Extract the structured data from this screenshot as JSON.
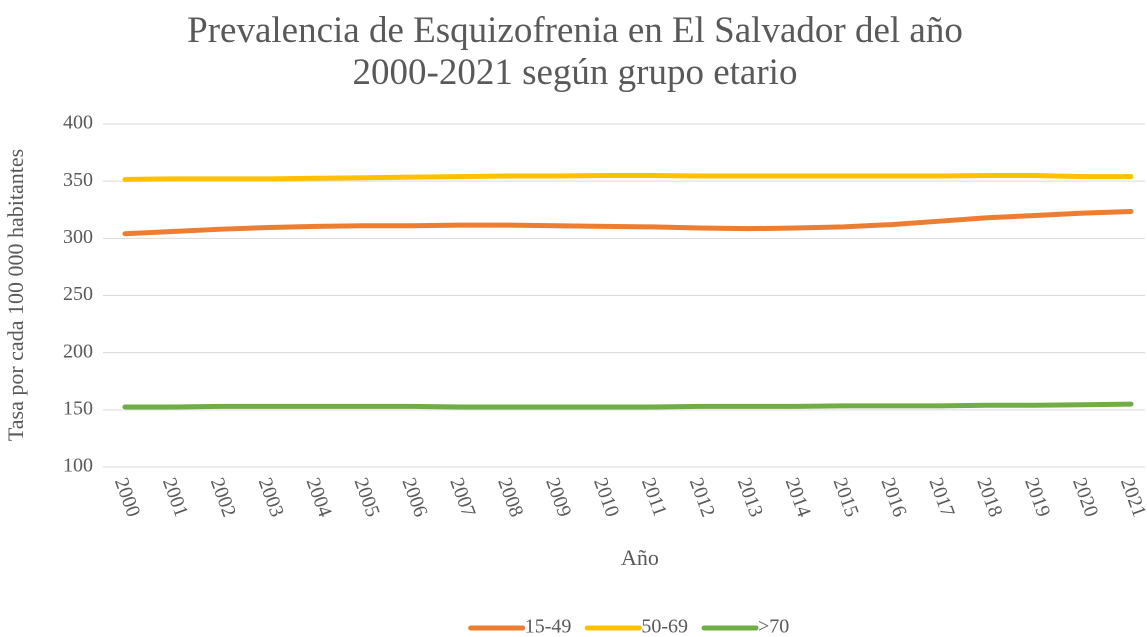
{
  "chart_data": {
    "type": "line",
    "title": "Prevalencia de Esquizofrenia en El Salvador del año 2000-2021 según grupo etario",
    "x_label": "Año",
    "y_label": "Tasa por cada 100 000 habitantes",
    "categories": [
      "2000",
      "2001",
      "2002",
      "2003",
      "2004",
      "2005",
      "2006",
      "2007",
      "2008",
      "2009",
      "2010",
      "2011",
      "2012",
      "2013",
      "2014",
      "2015",
      "2016",
      "2017",
      "2018",
      "2019",
      "2020",
      "2021"
    ],
    "series": [
      {
        "name": "15-49",
        "color": "#ED7D31",
        "values": [
          304,
          306,
          308,
          309.5,
          310.5,
          311,
          311,
          311.5,
          311.5,
          311,
          310.5,
          310,
          309,
          308.5,
          309,
          310,
          312,
          315,
          318,
          320,
          322,
          323.5
        ]
      },
      {
        "name": "50-69",
        "color": "#FFC000",
        "values": [
          351.5,
          352,
          352,
          352,
          352.5,
          353,
          353.5,
          354,
          354.5,
          354.5,
          355,
          355,
          354.5,
          354.5,
          354.5,
          354.5,
          354.5,
          354.5,
          355,
          355,
          354,
          354
        ]
      },
      {
        "name": ">70",
        "color": "#70AD47",
        "values": [
          152.5,
          152.5,
          153,
          153,
          153,
          153,
          153,
          152.5,
          152.5,
          152.5,
          152.5,
          152.5,
          153,
          153,
          153,
          153.5,
          153.5,
          153.5,
          154,
          154,
          154.5,
          155
        ]
      }
    ],
    "ylim": [
      100,
      400
    ],
    "yticks": [
      100,
      150,
      200,
      250,
      300,
      350,
      400
    ],
    "grid": true,
    "legend": "bottom"
  }
}
